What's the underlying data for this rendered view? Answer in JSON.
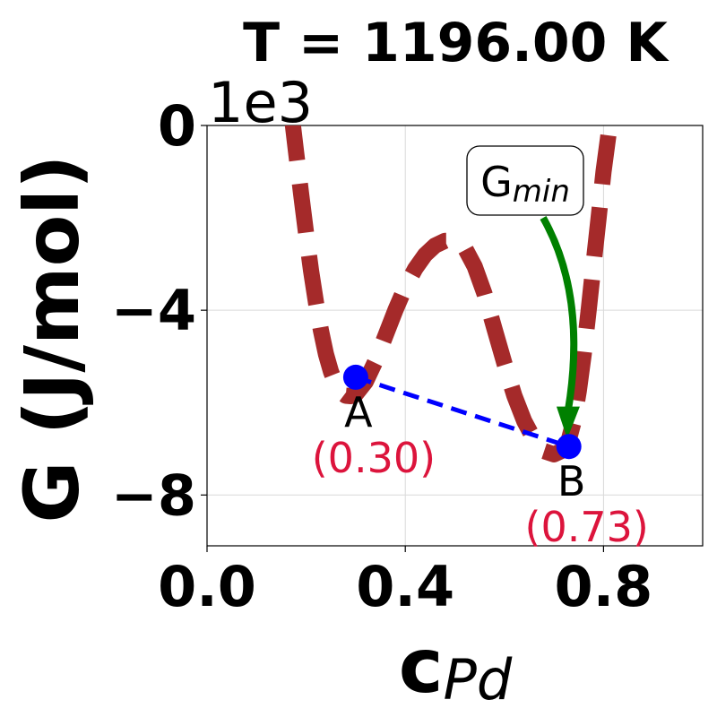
{
  "chart_data": {
    "type": "line",
    "title": "T = 1196.00 K",
    "xlabel_main": "c",
    "xlabel_sub": "Pd",
    "ylabel": "G (J/mol)",
    "y_offset_label": "1e3",
    "xlim": [
      0.0,
      1.0
    ],
    "ylim": [
      -9.1,
      0.0
    ],
    "x_ticks": [
      0.0,
      0.4,
      0.8
    ],
    "x_tick_labels": [
      "0.0",
      "0.4",
      "0.8"
    ],
    "y_ticks": [
      0,
      -4,
      -8
    ],
    "y_tick_labels": [
      "0",
      "−4",
      "−8"
    ],
    "grid": true,
    "curve": {
      "style": "dashed",
      "color": "#a52a2a",
      "x": [
        0.17,
        0.18,
        0.19,
        0.2,
        0.21,
        0.22,
        0.23,
        0.24,
        0.25,
        0.26,
        0.27,
        0.28,
        0.29,
        0.3,
        0.32,
        0.34,
        0.36,
        0.38,
        0.4,
        0.42,
        0.44,
        0.46,
        0.48,
        0.5,
        0.51,
        0.52,
        0.54,
        0.56,
        0.58,
        0.6,
        0.62,
        0.64,
        0.66,
        0.68,
        0.7,
        0.72,
        0.73,
        0.74,
        0.75,
        0.76,
        0.77,
        0.78,
        0.79,
        0.8,
        0.81,
        0.82,
        0.83
      ],
      "y": [
        0.3,
        -0.6,
        -1.5,
        -2.35,
        -3.15,
        -3.85,
        -4.45,
        -4.95,
        -5.33,
        -5.6,
        -5.77,
        -5.85,
        -5.86,
        -5.82,
        -5.55,
        -5.1,
        -4.55,
        -4.0,
        -3.5,
        -3.1,
        -2.8,
        -2.6,
        -2.5,
        -2.5,
        -2.53,
        -2.65,
        -3.05,
        -3.65,
        -4.4,
        -5.15,
        -5.85,
        -6.4,
        -6.8,
        -7.05,
        -7.12,
        -7.02,
        -6.8,
        -6.4,
        -5.75,
        -4.95,
        -4.0,
        -3.0,
        -2.0,
        -1.0,
        -0.2,
        0.4,
        0.8
      ]
    },
    "tie_line": {
      "color": "#0000ff",
      "style": "dashed",
      "x": [
        0.3,
        0.73
      ],
      "y": [
        -5.45,
        -6.95
      ]
    },
    "points": [
      {
        "name": "A",
        "x": 0.3,
        "y": -5.45,
        "value_label": "(0.30)"
      },
      {
        "name": "B",
        "x": 0.73,
        "y": -6.95,
        "value_label": "(0.73)"
      }
    ],
    "annotation": {
      "text_main": "G",
      "text_sub": "min",
      "arrow_color": "#008000",
      "target": {
        "x": 0.725,
        "y": -6.9
      }
    },
    "colors": {
      "point": "#0000ff",
      "value_label": "#dc143c",
      "curve": "#a52a2a",
      "arrow": "#008000",
      "grid": "#d9d9d9"
    }
  }
}
